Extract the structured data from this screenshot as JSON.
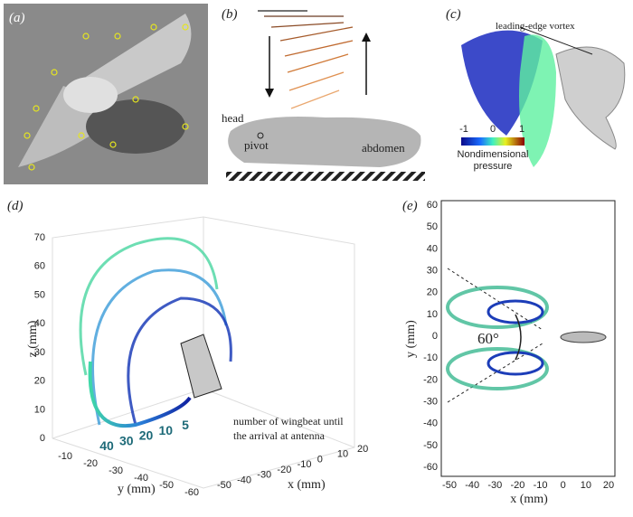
{
  "panel_a": {
    "label": "(a)"
  },
  "panel_b": {
    "label": "(b)",
    "head": "head",
    "pivot": "pivot",
    "abdomen": "abdomen"
  },
  "panel_c": {
    "label": "(c)",
    "annotation": "leading-edge vortex",
    "colorbar_ticks": [
      "-1",
      "0",
      "1"
    ],
    "colorbar_title": [
      "Nondimensional",
      "pressure"
    ]
  },
  "panel_d": {
    "label": "(d)",
    "z_label": "z (mm)",
    "z_ticks": [
      0,
      10,
      20,
      30,
      40,
      50,
      60,
      70
    ],
    "y_label": "y (mm)",
    "y_ticks": [
      -10,
      -20,
      -30,
      -40,
      -50,
      -60
    ],
    "x_label": "x (mm)",
    "x_ticks": [
      -50,
      -40,
      -30,
      -20,
      -10,
      0,
      10,
      20
    ],
    "wingbeats": [
      "40",
      "30",
      "20",
      "10",
      "5"
    ],
    "note": [
      "number of wingbeat until",
      "the arrival at antenna"
    ]
  },
  "panel_e": {
    "label": "(e)",
    "angle": "60°",
    "y_label": "y (mm)",
    "y_ticks": [
      60,
      50,
      40,
      30,
      20,
      10,
      0,
      -10,
      -20,
      -30,
      -40,
      -50,
      -60
    ],
    "x_label": "x (mm)",
    "x_ticks": [
      -50,
      -40,
      -30,
      -20,
      -10,
      0,
      10,
      20
    ]
  }
}
